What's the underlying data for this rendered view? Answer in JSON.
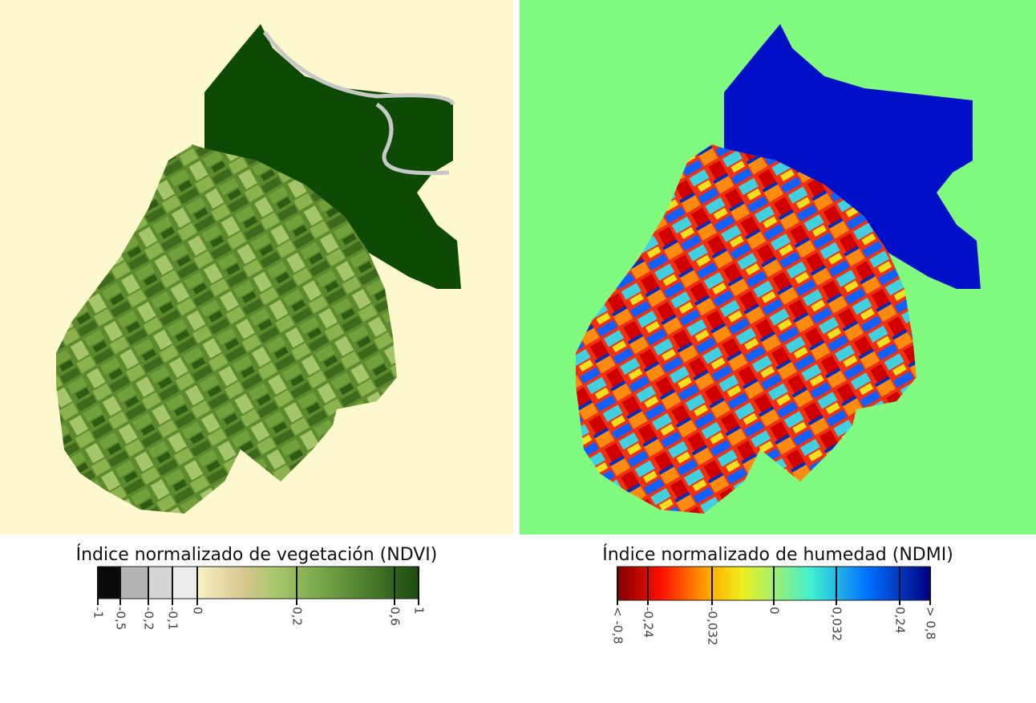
{
  "panels": [
    {
      "title": "Índice  normalizado de vegetación (NDVI)",
      "legend_ticks": [
        "-1",
        "-0,5",
        "-0,2",
        "-0,1",
        "0",
        "0,2",
        "0,6",
        "1"
      ]
    },
    {
      "title": "Índice normalizado de humedad (NDMI)",
      "legend_ticks": [
        "< -0,8",
        "-0,24",
        "-0,032",
        "0",
        "0,032",
        "0,24",
        "> 0,8"
      ]
    }
  ]
}
